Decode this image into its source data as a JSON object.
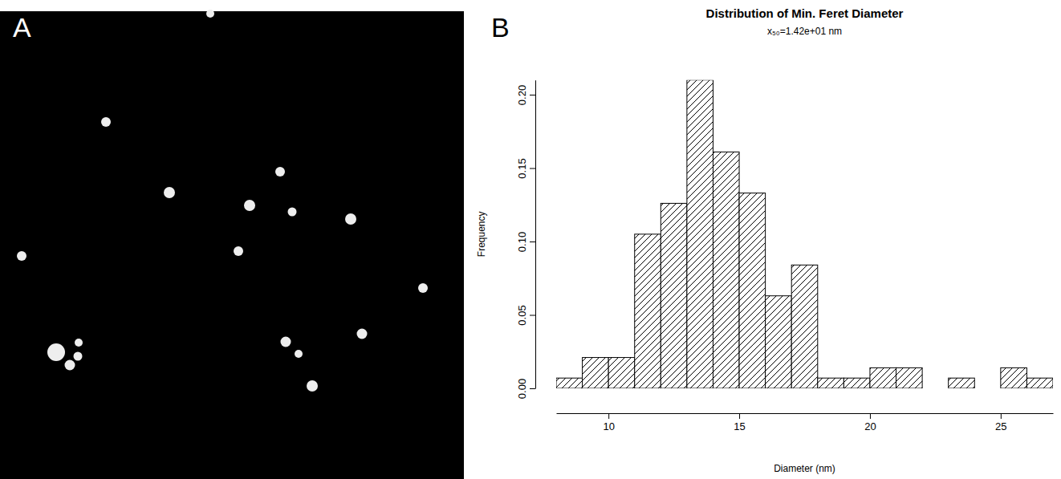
{
  "panels": {
    "image": {
      "label": "A"
    },
    "chart": {
      "label": "B"
    }
  },
  "chart_data": {
    "type": "histogram",
    "title": "Distribution of Min. Feret Diameter",
    "subtitle": "x₅₀=1.42e+01 nm",
    "x_label": "Diameter (nm)",
    "y_label": "Frequency",
    "bins": [
      8,
      9,
      10,
      11,
      12,
      13,
      14,
      15,
      16,
      17,
      18,
      19,
      20,
      21,
      22,
      23,
      24,
      25,
      26,
      27
    ],
    "values": [
      0.007,
      0.021,
      0.021,
      0.105,
      0.126,
      0.21,
      0.161,
      0.133,
      0.063,
      0.084,
      0.007,
      0.007,
      0.014,
      0.014,
      0,
      0.007,
      0,
      0.014,
      0.007
    ],
    "color": "#000000",
    "xlim": [
      8,
      27
    ],
    "ylim": [
      0,
      0.21
    ],
    "xticks": [
      10,
      15,
      20,
      25
    ],
    "yticks": [
      {
        "value": 0,
        "label": "0.00"
      },
      {
        "value": 0.05,
        "label": "0.05"
      },
      {
        "value": 0.1,
        "label": "0.10"
      },
      {
        "value": 0.15,
        "label": "0.15"
      },
      {
        "value": 0.2,
        "label": "0.20"
      }
    ],
    "grid": false
  }
}
